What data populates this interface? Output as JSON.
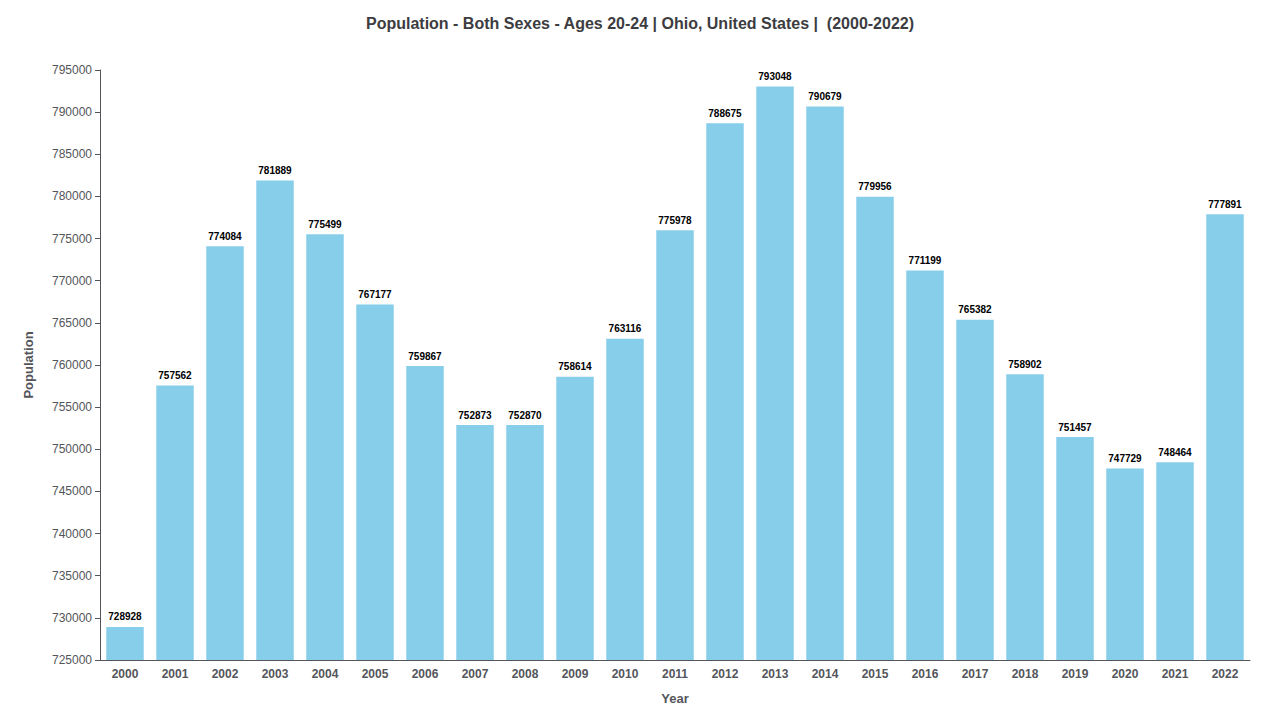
{
  "chart_data": {
    "type": "bar",
    "title": "Population - Both Sexes - Ages 20-24 | Ohio, United States |  (2000-2022)",
    "x_label": "Year",
    "y_label": "Population",
    "categories": [
      "2000",
      "2001",
      "2002",
      "2003",
      "2004",
      "2005",
      "2006",
      "2007",
      "2008",
      "2009",
      "2010",
      "2011",
      "2012",
      "2013",
      "2014",
      "2015",
      "2016",
      "2017",
      "2018",
      "2019",
      "2020",
      "2021",
      "2022"
    ],
    "values": [
      728928,
      757562,
      774084,
      781889,
      775499,
      767177,
      759867,
      752873,
      752870,
      758614,
      763116,
      775978,
      788675,
      793048,
      790679,
      779956,
      771199,
      765382,
      758902,
      751457,
      747729,
      748464,
      777891
    ],
    "color": "#87CEEB",
    "ylim": [
      725000,
      795000
    ],
    "yticks": [
      725000,
      730000,
      735000,
      740000,
      745000,
      750000,
      755000,
      760000,
      765000,
      770000,
      775000,
      780000,
      785000,
      790000,
      795000
    ],
    "grid": false,
    "data_labels": true
  }
}
